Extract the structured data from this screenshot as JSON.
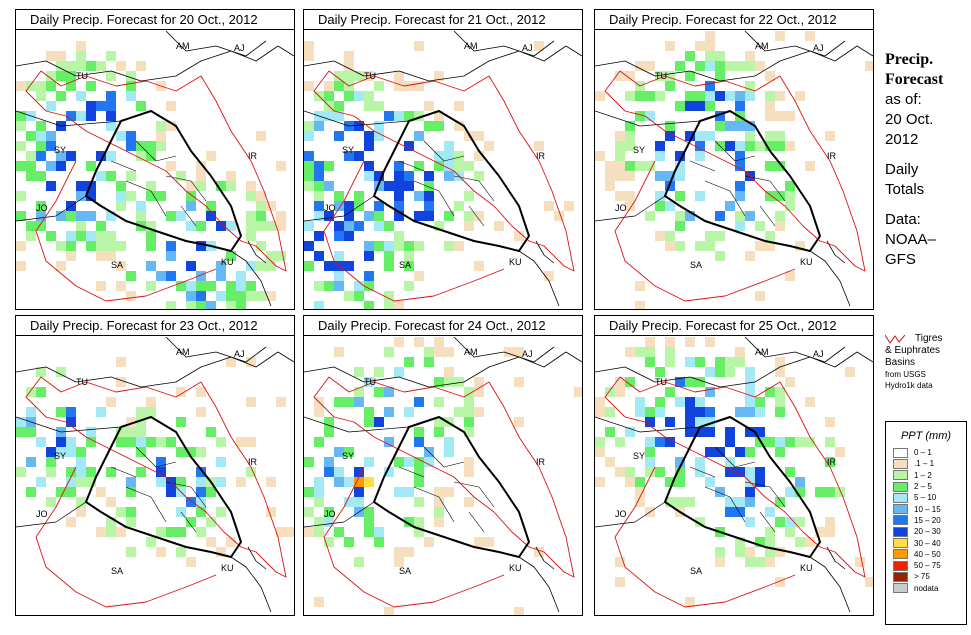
{
  "panels": [
    {
      "title": "Daily Precip. Forecast for  20 Oct., 2012",
      "focus": [
        [
          70,
          100
        ],
        [
          180,
          220
        ],
        [
          60,
          145
        ]
      ],
      "density": 0.55
    },
    {
      "title": "Daily Precip. Forecast for  21 Oct., 2012",
      "focus": [
        [
          50,
          120
        ],
        [
          30,
          210
        ],
        [
          90,
          150
        ]
      ],
      "density": 0.6
    },
    {
      "title": "Daily Precip. Forecast for  22 Oct., 2012",
      "focus": [
        [
          95,
          120
        ],
        [
          100,
          90
        ],
        [
          120,
          140
        ]
      ],
      "density": 0.45
    },
    {
      "title": "Daily Precip. Forecast for  23 Oct., 2012",
      "focus": [
        [
          30,
          90
        ],
        [
          150,
          140
        ]
      ],
      "density": 0.3
    },
    {
      "title": "Daily Precip. Forecast for  24 Oct., 2012",
      "focus": [
        [
          55,
          140
        ],
        [
          90,
          80
        ]
      ],
      "density": 0.35
    },
    {
      "title": "Daily Precip. Forecast for  25 Oct., 2012",
      "focus": [
        [
          130,
          90
        ],
        [
          160,
          140
        ],
        [
          80,
          80
        ]
      ],
      "density": 0.45
    }
  ],
  "map_labels": {
    "AM": "AM",
    "AJ": "AJ",
    "TU": "TU",
    "SY": "SY",
    "IR": "IR",
    "JO": "JO",
    "SA": "SA",
    "KU": "KU"
  },
  "info": {
    "title1": "Precip.",
    "title2": "Forecast",
    "asof": "as of:",
    "date1": "20 Oct.",
    "date2": "2012",
    "daily1": "Daily",
    "daily2": "Totals",
    "data1": "Data:",
    "data2": "NOAA–",
    "data3": "GFS"
  },
  "basins": {
    "line1": "Tigres",
    "line2": "& Euphrates",
    "line3": "Basins",
    "line4": "from USGS",
    "line5": "Hydro1k data"
  },
  "legend": {
    "title": "PPT (mm)",
    "items": [
      {
        "label": "0 – 1",
        "color": "#ffffff"
      },
      {
        "label": ".1 – 1",
        "color": "#f5dfbf"
      },
      {
        "label": "1 – 2",
        "color": "#b8f5a6"
      },
      {
        "label": "2 – 5",
        "color": "#66ee66"
      },
      {
        "label": "5 – 10",
        "color": "#a3e8f5"
      },
      {
        "label": "10 – 15",
        "color": "#66b8f5"
      },
      {
        "label": "15 – 20",
        "color": "#2277f0"
      },
      {
        "label": "20 – 30",
        "color": "#1144dd"
      },
      {
        "label": "30 – 40",
        "color": "#ffdd44"
      },
      {
        "label": "40 – 50",
        "color": "#ff9900"
      },
      {
        "label": "50 – 75",
        "color": "#ee2200"
      },
      {
        "label": "> 75",
        "color": "#992200"
      },
      {
        "label": "nodata",
        "color": "#cccccc"
      }
    ]
  }
}
